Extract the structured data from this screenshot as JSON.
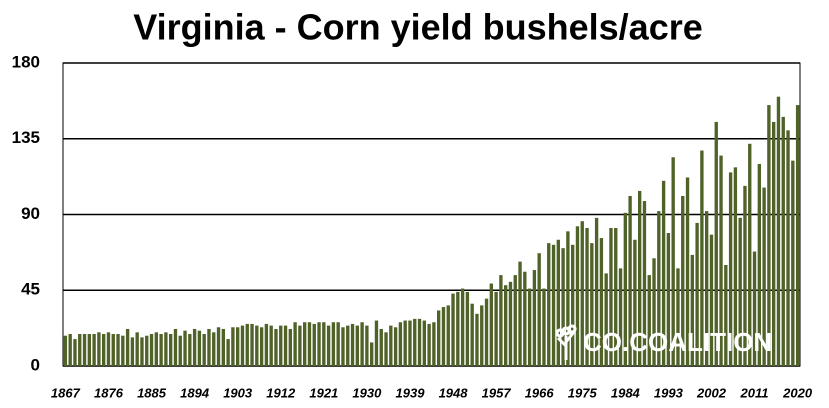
{
  "chart_data": {
    "type": "bar",
    "title": "Virginia - Corn yield bushels/acre",
    "watermark": "CO.COALITION",
    "categories": [
      "1867",
      null,
      null,
      null,
      null,
      null,
      null,
      null,
      null,
      "1876",
      null,
      null,
      null,
      null,
      null,
      null,
      null,
      null,
      "1885",
      null,
      null,
      null,
      null,
      null,
      null,
      null,
      null,
      "1894",
      null,
      null,
      null,
      null,
      null,
      null,
      null,
      null,
      "1903",
      null,
      null,
      null,
      null,
      null,
      null,
      null,
      null,
      "1912",
      null,
      null,
      null,
      null,
      null,
      null,
      null,
      null,
      "1921",
      null,
      null,
      null,
      null,
      null,
      null,
      null,
      null,
      "1930",
      null,
      null,
      null,
      null,
      null,
      null,
      null,
      null,
      "1939",
      null,
      null,
      null,
      null,
      null,
      null,
      null,
      null,
      "1948",
      null,
      null,
      null,
      null,
      null,
      null,
      null,
      null,
      "1957",
      null,
      null,
      null,
      null,
      null,
      null,
      null,
      null,
      "1966",
      null,
      null,
      null,
      null,
      null,
      null,
      null,
      null,
      "1975",
      null,
      null,
      null,
      null,
      null,
      null,
      null,
      null,
      "1984",
      null,
      null,
      null,
      null,
      null,
      null,
      null,
      null,
      "1993",
      null,
      null,
      null,
      null,
      null,
      null,
      null,
      null,
      "2002",
      null,
      null,
      null,
      null,
      null,
      null,
      null,
      null,
      "2011",
      null,
      null,
      null,
      null,
      null,
      null,
      null,
      null,
      "2020"
    ],
    "values": [
      18,
      19,
      16,
      19,
      19,
      19,
      19,
      20,
      19,
      20,
      19,
      19,
      18,
      22,
      17,
      20,
      17,
      18,
      19,
      20,
      19,
      20,
      19,
      22,
      18,
      21,
      19,
      22,
      21,
      19,
      22,
      20,
      23,
      22,
      16,
      23,
      23,
      24,
      25,
      25,
      24,
      23,
      25,
      24,
      22,
      24,
      24,
      22,
      26,
      24,
      26,
      26,
      25,
      26,
      26,
      24,
      26,
      26,
      23,
      24,
      25,
      24,
      26,
      24,
      14,
      27,
      22,
      20,
      24,
      23,
      26,
      27,
      27,
      28,
      28,
      27,
      25,
      26,
      33,
      35,
      36,
      43,
      44,
      46,
      44,
      37,
      31,
      36,
      40,
      49,
      44,
      54,
      48,
      50,
      54,
      62,
      56,
      46,
      57,
      67,
      46,
      73,
      72,
      75,
      70,
      80,
      72,
      83,
      86,
      82,
      73,
      88,
      76,
      55,
      82,
      82,
      58,
      91,
      101,
      75,
      104,
      98,
      54,
      64,
      92,
      110,
      79,
      124,
      58,
      101,
      112,
      66,
      85,
      128,
      92,
      78,
      145,
      125,
      60,
      115,
      118,
      88,
      107,
      132,
      68,
      120,
      106,
      155,
      145,
      160,
      148,
      140,
      122,
      155
    ],
    "color": "#4f6228",
    "ylim": [
      0,
      180
    ],
    "yticks": [
      0,
      45,
      90,
      135,
      180
    ],
    "grid": true
  }
}
